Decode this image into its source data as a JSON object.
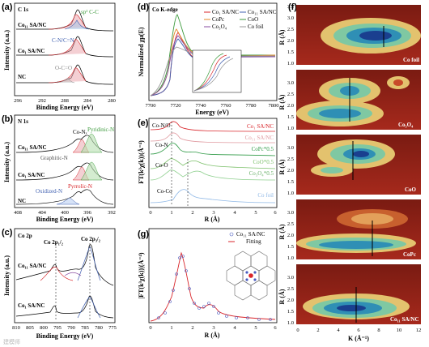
{
  "figure": {
    "panel_a": {
      "tag": "(a)",
      "title": "C 1s",
      "xlabel": "Binding Energy (eV)",
      "ylabel": "Intensity (a.u.)",
      "xticks": [
        "296",
        "292",
        "288",
        "284",
        "280"
      ],
      "samples": [
        "Co₁₁ SA/NC",
        "Co₁ SA/NC",
        "NC"
      ],
      "annotations": [
        "sp² C-C",
        "C-N/C=N",
        "O-C=O"
      ]
    },
    "panel_b": {
      "tag": "(b)",
      "title": "N 1s",
      "xlabel": "Binding Energy (eV)",
      "ylabel": "Intensity (a.u.)",
      "xticks": [
        "408",
        "404",
        "400",
        "396",
        "392"
      ],
      "samples": [
        "Co₁₁ SA/NC",
        "Co₁ SA/NC",
        "NC"
      ],
      "annotations": [
        "Co-Nₓ",
        "Pyridinic-N",
        "Graphitic-N",
        "Pyrrolic-N",
        "Oxidized-N"
      ]
    },
    "panel_c": {
      "tag": "(c)",
      "title": "Co 2p",
      "xlabel": "Binding Energy (eV)",
      "ylabel": "Intensity (a.u.)",
      "xticks": [
        "810",
        "805",
        "800",
        "795",
        "790",
        "785",
        "780",
        "775"
      ],
      "samples": [
        "Co₁₁ SA/NC",
        "Co₁ SA/NC"
      ],
      "annotations": [
        "Co 2p₁/₂",
        "Co 2p₃/₂"
      ]
    },
    "panel_d": {
      "tag": "(d)",
      "title": "Co K-edge",
      "xlabel": "Energy (eV)",
      "ylabel": "Normalized χμ(E)",
      "xticks": [
        "7700",
        "7720",
        "7740",
        "7760",
        "7780",
        "7800"
      ],
      "legend": [
        "Co₁ SA/NC",
        "Co₁₁ SA/NC",
        "CoPc",
        "CoO",
        "Co₃O₄",
        "Co foil"
      ]
    },
    "panel_e": {
      "tag": "(e)",
      "xlabel": "R (Å)",
      "ylabel": "FT(k³χ(k))(Å⁻⁴)",
      "xticks": [
        "0",
        "1",
        "2",
        "3",
        "4",
        "5",
        "6"
      ],
      "labels": [
        "Co-N/O",
        "Co-N",
        "Co-O",
        "Co-Co"
      ],
      "series": [
        "Co₁ SA/NC",
        "Co₁₁ SA/NC",
        "CoPc*0.5",
        "CoO*0.5",
        "Co₃O₄*0.5",
        "Co foil"
      ]
    },
    "panel_f": {
      "tag": "(f)",
      "ylabel": "R (Å)",
      "xlabel": "K (Å⁻¹)",
      "yticks": [
        "3.5",
        "3.0",
        "2.5",
        "2.0",
        "1.5",
        "1.0"
      ],
      "xticks": [
        "0",
        "2",
        "4",
        "6",
        "8",
        "10",
        "12"
      ],
      "maps": [
        "Co foil",
        "Co₃O₄",
        "CoO",
        "CoPc",
        "Co₁₁ SA/NC"
      ]
    },
    "panel_g": {
      "tag": "(g)",
      "xlabel": "R (Å)",
      "ylabel": "|FT(k³χ(k))|(Å⁻⁴)",
      "xticks": [
        "0",
        "1",
        "2",
        "3",
        "4",
        "5",
        "6"
      ],
      "legend": [
        "Co₁₁ SA/NC",
        "Fitting"
      ]
    },
    "watermark": "建模师"
  },
  "colors": {
    "red": "#d9262b",
    "green": "#3c9a3c",
    "blue": "#3f5fb0",
    "gray": "#888888",
    "teal": "#2f9a86",
    "purple": "#5a4bb0",
    "pink": "#e0a0a8",
    "orange": "#e38a2a",
    "lightgreen": "#7cc06a",
    "lightblue": "#8fb8e6"
  }
}
